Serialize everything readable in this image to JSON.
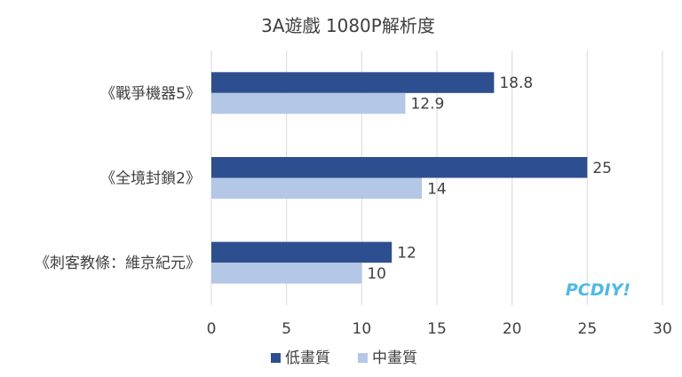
{
  "chart_data": {
    "type": "bar",
    "orientation": "horizontal",
    "title": "3A遊戲 1080P解析度",
    "categories": [
      "《戰爭機器5》",
      "《全境封鎖2》",
      "《刺客教條：維京紀元》"
    ],
    "series": [
      {
        "name": "低畫質",
        "color": "#2e4f8f",
        "values": [
          18.8,
          25,
          12
        ]
      },
      {
        "name": "中畫質",
        "color": "#b4c7e7",
        "values": [
          12.9,
          14,
          10
        ]
      }
    ],
    "data_labels": [
      [
        "18.8",
        "25",
        "12"
      ],
      [
        "12.9",
        "14",
        "10"
      ]
    ],
    "xlim": [
      0,
      30
    ],
    "xticks": [
      0,
      5,
      10,
      15,
      20,
      25,
      30
    ],
    "grid": true,
    "legend_position": "bottom"
  },
  "watermark": "PCDIY!"
}
